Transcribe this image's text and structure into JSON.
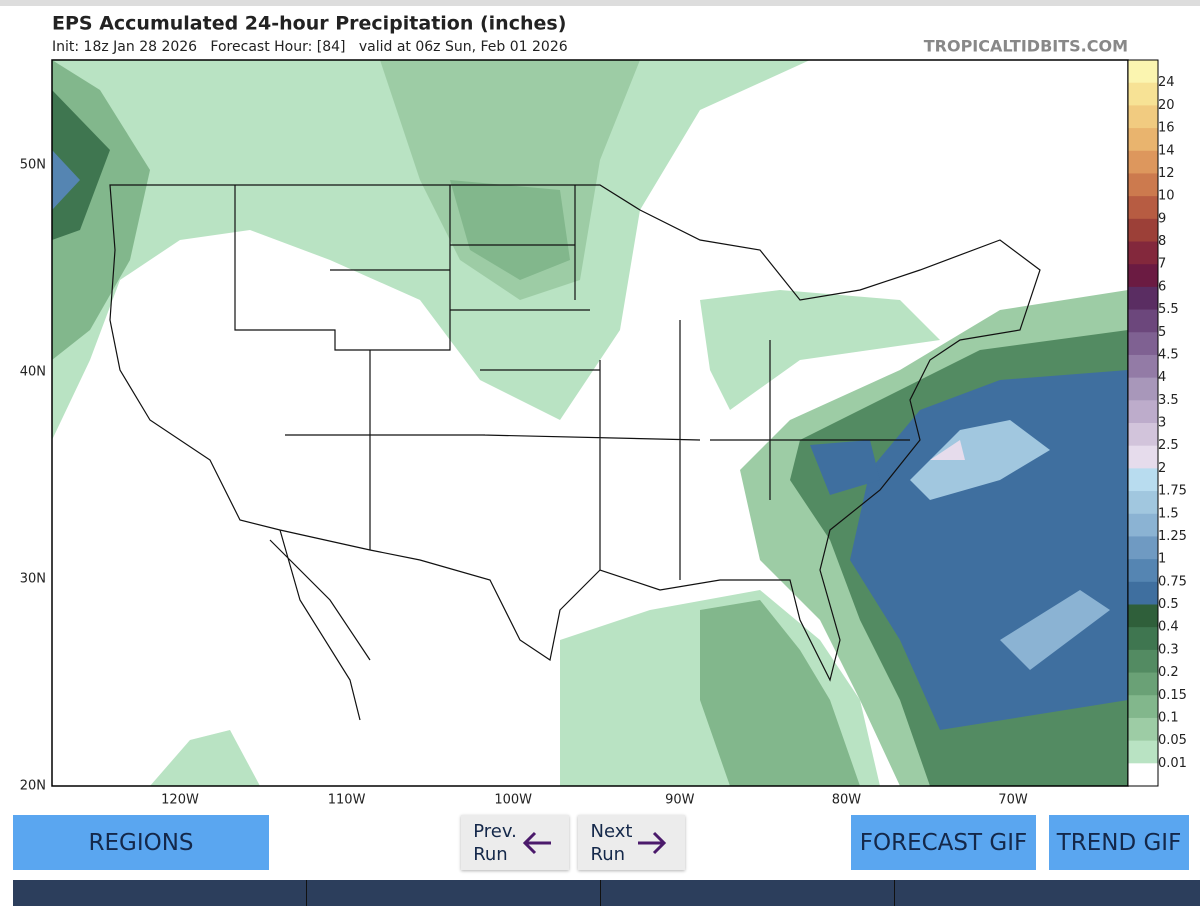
{
  "header": {
    "title": "EPS Accumulated 24-hour Precipitation (inches)",
    "init": "Init: 18z Jan 28 2026   Forecast Hour: [84]   valid at 06z Sun, Feb 01 2026",
    "site": "TROPICALTIDBITS.COM"
  },
  "map": {
    "lat_labels": [
      "50N",
      "40N",
      "30N",
      "20N"
    ],
    "lon_labels": [
      "120W",
      "110W",
      "100W",
      "90W",
      "80W",
      "70W"
    ]
  },
  "colorbar": {
    "labels": [
      "24",
      "20",
      "16",
      "14",
      "12",
      "10",
      "9",
      "8",
      "7",
      "6",
      "5.5",
      "5",
      "4.5",
      "4",
      "3.5",
      "3",
      "2.5",
      "2",
      "1.75",
      "1.5",
      "1.25",
      "1",
      "0.75",
      "0.5",
      "0.4",
      "0.3",
      "0.2",
      "0.15",
      "0.1",
      "0.05",
      "0.01"
    ]
  },
  "buttons": {
    "regions": "REGIONS",
    "prev": [
      "Prev.",
      "Run"
    ],
    "next": [
      "Next",
      "Run"
    ],
    "forecast_gif": "FORECAST GIF",
    "trend_gif": "TREND GIF"
  }
}
